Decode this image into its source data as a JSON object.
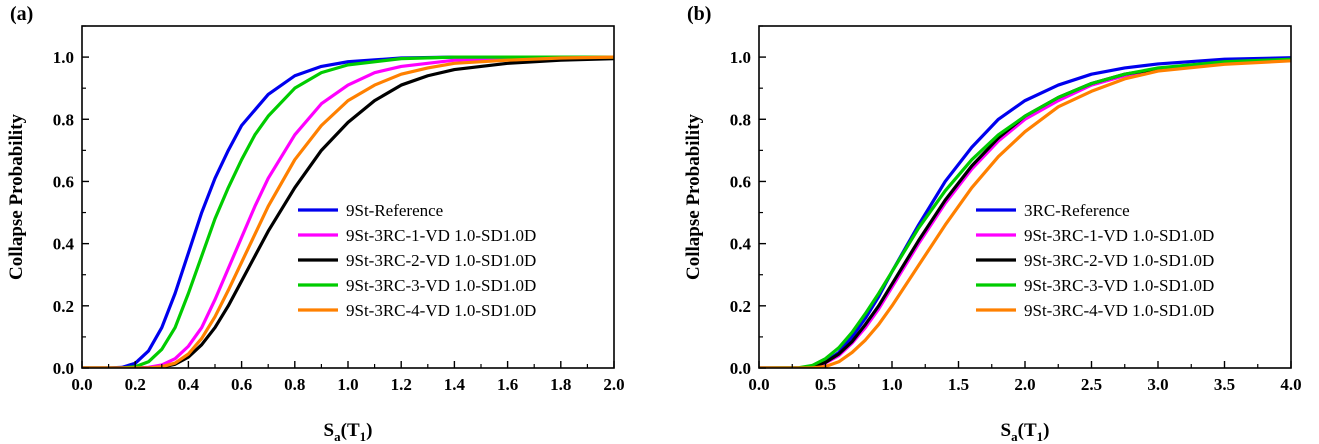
{
  "chart_data": [
    {
      "type": "line",
      "panel_label": "(a)",
      "xlabel": "S",
      "xlabel_sub": "a",
      "xlabel_tail": "(T",
      "xlabel_sub2": "1",
      "xlabel_close": ")",
      "ylabel": "Collapse Probability",
      "xlim": [
        0,
        2.0
      ],
      "ylim": [
        0,
        1.1
      ],
      "xticks": [
        0.0,
        0.2,
        0.4,
        0.6,
        0.8,
        1.0,
        1.2,
        1.4,
        1.6,
        1.8,
        2.0
      ],
      "xtick_labels": [
        "0.0",
        "0.2",
        "0.4",
        "0.6",
        "0.8",
        "1.0",
        "1.2",
        "1.4",
        "1.6",
        "1.8",
        "2.0"
      ],
      "yticks": [
        0.0,
        0.2,
        0.4,
        0.6,
        0.8,
        1.0
      ],
      "ytick_labels": [
        "0.0",
        "0.2",
        "0.4",
        "0.6",
        "0.8",
        "1.0"
      ],
      "grid": false,
      "legend_position": "bottom-right",
      "series": [
        {
          "name": "9St-Reference",
          "color": "#0000ee",
          "x": [
            0.0,
            0.1,
            0.15,
            0.2,
            0.25,
            0.3,
            0.35,
            0.4,
            0.45,
            0.5,
            0.55,
            0.6,
            0.7,
            0.8,
            0.9,
            1.0,
            1.2,
            1.4,
            1.6,
            1.8,
            2.0
          ],
          "y": [
            0.0,
            0.0,
            0.002,
            0.015,
            0.055,
            0.13,
            0.24,
            0.37,
            0.5,
            0.61,
            0.7,
            0.78,
            0.88,
            0.94,
            0.97,
            0.985,
            0.997,
            1.0,
            1.0,
            1.0,
            1.0
          ]
        },
        {
          "name": "9St-3RC-1-VD 1.0-SD1.0D",
          "color": "#ff00ff",
          "x": [
            0.0,
            0.2,
            0.25,
            0.3,
            0.35,
            0.4,
            0.45,
            0.5,
            0.55,
            0.6,
            0.65,
            0.7,
            0.8,
            0.9,
            1.0,
            1.1,
            1.2,
            1.4,
            1.6,
            1.8,
            2.0
          ],
          "y": [
            0.0,
            0.0,
            0.002,
            0.01,
            0.03,
            0.07,
            0.13,
            0.22,
            0.32,
            0.42,
            0.52,
            0.61,
            0.75,
            0.85,
            0.91,
            0.95,
            0.97,
            0.99,
            0.997,
            1.0,
            1.0
          ]
        },
        {
          "name": "9St-3RC-2-VD 1.0-SD1.0D",
          "color": "#000000",
          "x": [
            0.0,
            0.25,
            0.3,
            0.35,
            0.4,
            0.45,
            0.5,
            0.55,
            0.6,
            0.65,
            0.7,
            0.8,
            0.9,
            1.0,
            1.1,
            1.2,
            1.3,
            1.4,
            1.6,
            1.8,
            2.0
          ],
          "y": [
            0.0,
            0.0,
            0.003,
            0.012,
            0.035,
            0.075,
            0.13,
            0.2,
            0.28,
            0.36,
            0.44,
            0.58,
            0.7,
            0.79,
            0.86,
            0.91,
            0.94,
            0.96,
            0.98,
            0.99,
            0.995
          ]
        },
        {
          "name": "9St-3RC-3-VD 1.0-SD1.0D",
          "color": "#00cc00",
          "x": [
            0.0,
            0.15,
            0.2,
            0.25,
            0.3,
            0.35,
            0.4,
            0.45,
            0.5,
            0.55,
            0.6,
            0.65,
            0.7,
            0.8,
            0.9,
            1.0,
            1.2,
            1.4,
            1.6,
            1.8,
            2.0
          ],
          "y": [
            0.0,
            0.0,
            0.004,
            0.02,
            0.06,
            0.13,
            0.24,
            0.36,
            0.48,
            0.58,
            0.67,
            0.75,
            0.81,
            0.9,
            0.95,
            0.975,
            0.995,
            1.0,
            1.0,
            1.0,
            1.0
          ]
        },
        {
          "name": "9St-3RC-4-VD 1.0-SD1.0D",
          "color": "#ff8000",
          "x": [
            0.0,
            0.25,
            0.3,
            0.35,
            0.4,
            0.45,
            0.5,
            0.55,
            0.6,
            0.65,
            0.7,
            0.8,
            0.9,
            1.0,
            1.1,
            1.2,
            1.3,
            1.4,
            1.6,
            1.8,
            2.0
          ],
          "y": [
            0.0,
            0.0,
            0.004,
            0.016,
            0.045,
            0.095,
            0.165,
            0.25,
            0.34,
            0.43,
            0.52,
            0.67,
            0.78,
            0.86,
            0.91,
            0.945,
            0.965,
            0.98,
            0.99,
            0.997,
            1.0
          ]
        }
      ]
    },
    {
      "type": "line",
      "panel_label": "(b)",
      "xlabel": "S",
      "xlabel_sub": "a",
      "xlabel_tail": "(T",
      "xlabel_sub2": "1",
      "xlabel_close": ")",
      "ylabel": "Collapse Probability",
      "xlim": [
        0,
        4.0
      ],
      "ylim": [
        0,
        1.1
      ],
      "xticks": [
        0.0,
        0.5,
        1.0,
        1.5,
        2.0,
        2.5,
        3.0,
        3.5,
        4.0
      ],
      "xtick_labels": [
        "0.0",
        "0.5",
        "1.0",
        "1.5",
        "2.0",
        "2.5",
        "3.0",
        "3.5",
        "4.0"
      ],
      "yticks": [
        0.0,
        0.2,
        0.4,
        0.6,
        0.8,
        1.0
      ],
      "ytick_labels": [
        "0.0",
        "0.2",
        "0.4",
        "0.6",
        "0.8",
        "1.0"
      ],
      "grid": false,
      "legend_position": "bottom-right",
      "series": [
        {
          "name": "3RC-Reference",
          "color": "#0000ee",
          "x": [
            0.0,
            0.3,
            0.4,
            0.5,
            0.6,
            0.7,
            0.8,
            0.9,
            1.0,
            1.2,
            1.4,
            1.6,
            1.8,
            2.0,
            2.25,
            2.5,
            2.75,
            3.0,
            3.5,
            4.0
          ],
          "y": [
            0.0,
            0.0,
            0.005,
            0.02,
            0.05,
            0.1,
            0.16,
            0.23,
            0.31,
            0.46,
            0.6,
            0.71,
            0.8,
            0.86,
            0.91,
            0.945,
            0.965,
            0.978,
            0.993,
            0.998
          ]
        },
        {
          "name": "9St-3RC-1-VD 1.0-SD1.0D",
          "color": "#ff00ff",
          "x": [
            0.0,
            0.3,
            0.4,
            0.5,
            0.6,
            0.7,
            0.8,
            0.9,
            1.0,
            1.2,
            1.4,
            1.6,
            1.8,
            2.0,
            2.25,
            2.5,
            2.75,
            3.0,
            3.5,
            4.0
          ],
          "y": [
            0.0,
            0.0,
            0.004,
            0.016,
            0.04,
            0.08,
            0.13,
            0.19,
            0.26,
            0.4,
            0.53,
            0.64,
            0.73,
            0.8,
            0.86,
            0.91,
            0.94,
            0.96,
            0.98,
            0.99
          ]
        },
        {
          "name": "9St-3RC-2-VD 1.0-SD1.0D",
          "color": "#000000",
          "x": [
            0.0,
            0.3,
            0.4,
            0.5,
            0.6,
            0.7,
            0.8,
            0.9,
            1.0,
            1.2,
            1.4,
            1.6,
            1.8,
            2.0,
            2.25,
            2.5,
            2.75,
            3.0,
            3.5,
            4.0
          ],
          "y": [
            0.0,
            0.0,
            0.004,
            0.018,
            0.045,
            0.085,
            0.14,
            0.2,
            0.27,
            0.41,
            0.54,
            0.65,
            0.74,
            0.81,
            0.87,
            0.915,
            0.945,
            0.962,
            0.982,
            0.99
          ]
        },
        {
          "name": "9St-3RC-3-VD 1.0-SD1.0D",
          "color": "#00cc00",
          "x": [
            0.0,
            0.3,
            0.4,
            0.5,
            0.6,
            0.7,
            0.8,
            0.9,
            1.0,
            1.2,
            1.4,
            1.6,
            1.8,
            2.0,
            2.25,
            2.5,
            2.75,
            3.0,
            3.5,
            4.0
          ],
          "y": [
            0.0,
            0.001,
            0.008,
            0.03,
            0.065,
            0.115,
            0.175,
            0.24,
            0.31,
            0.45,
            0.57,
            0.67,
            0.75,
            0.81,
            0.87,
            0.915,
            0.945,
            0.965,
            0.985,
            0.993
          ]
        },
        {
          "name": "9St-3RC-4-VD 1.0-SD1.0D",
          "color": "#ff8000",
          "x": [
            0.0,
            0.4,
            0.5,
            0.6,
            0.7,
            0.8,
            0.9,
            1.0,
            1.2,
            1.4,
            1.6,
            1.8,
            2.0,
            2.25,
            2.5,
            2.75,
            3.0,
            3.5,
            4.0
          ],
          "y": [
            0.0,
            0.0,
            0.005,
            0.02,
            0.05,
            0.09,
            0.14,
            0.2,
            0.33,
            0.46,
            0.58,
            0.68,
            0.76,
            0.84,
            0.89,
            0.93,
            0.955,
            0.977,
            0.988
          ]
        }
      ]
    }
  ]
}
